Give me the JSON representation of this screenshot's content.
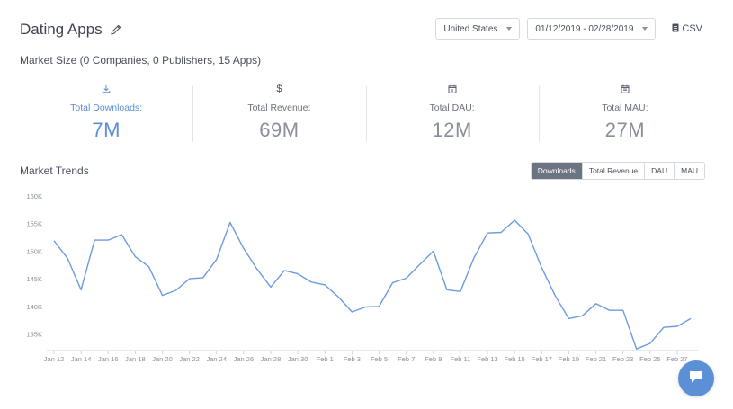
{
  "header": {
    "title": "Dating Apps",
    "edit_icon": "pencil-icon"
  },
  "filters": {
    "country": "United States",
    "date_range": "01/12/2019 - 02/28/2019",
    "export_label": "CSV",
    "export_icon": "document-icon"
  },
  "market_size": "Market Size (0 Companies, 0 Publishers, 15 Apps)",
  "metrics": [
    {
      "icon": "download-icon",
      "label": "Total Downloads:",
      "value": "7M",
      "active": true
    },
    {
      "icon": "dollar-icon",
      "label": "Total Revenue:",
      "value": "69M",
      "active": false
    },
    {
      "icon": "calendar-day-icon",
      "label": "Total DAU:",
      "value": "12M",
      "active": false
    },
    {
      "icon": "calendar-month-icon",
      "label": "Total MAU:",
      "value": "27M",
      "active": false
    }
  ],
  "trends": {
    "title": "Market Trends",
    "tabs": [
      "Downloads",
      "Total Revenue",
      "DAU",
      "MAU"
    ],
    "active_tab": "Downloads"
  },
  "colors": {
    "accent": "#5b8fd6",
    "active_tab_bg": "#6c7483"
  },
  "chart_data": {
    "type": "line",
    "title": "",
    "xlabel": "",
    "ylabel": "",
    "ylim": [
      132000,
      160000
    ],
    "y_ticks": [
      "160K",
      "155K",
      "150K",
      "145K",
      "140K",
      "135K"
    ],
    "y_tick_values": [
      160000,
      155000,
      150000,
      145000,
      140000,
      135000
    ],
    "x_tick_labels": [
      "Jan 12",
      "Jan 14",
      "Jan 16",
      "Jan 18",
      "Jan 20",
      "Jan 22",
      "Jan 24",
      "Jan 26",
      "Jan 28",
      "Jan 30",
      "Feb 1",
      "Feb 3",
      "Feb 5",
      "Feb 7",
      "Feb 9",
      "Feb 11",
      "Feb 13",
      "Feb 15",
      "Feb 17",
      "Feb 19",
      "Feb 21",
      "Feb 23",
      "Feb 25",
      "Feb 27"
    ],
    "x": [
      "Jan 12",
      "Jan 13",
      "Jan 14",
      "Jan 15",
      "Jan 16",
      "Jan 17",
      "Jan 18",
      "Jan 19",
      "Jan 20",
      "Jan 21",
      "Jan 22",
      "Jan 23",
      "Jan 24",
      "Jan 25",
      "Jan 26",
      "Jan 27",
      "Jan 28",
      "Jan 29",
      "Jan 30",
      "Jan 31",
      "Feb 1",
      "Feb 2",
      "Feb 3",
      "Feb 4",
      "Feb 5",
      "Feb 6",
      "Feb 7",
      "Feb 8",
      "Feb 9",
      "Feb 10",
      "Feb 11",
      "Feb 12",
      "Feb 13",
      "Feb 14",
      "Feb 15",
      "Feb 16",
      "Feb 17",
      "Feb 18",
      "Feb 19",
      "Feb 20",
      "Feb 21",
      "Feb 22",
      "Feb 23",
      "Feb 24",
      "Feb 25",
      "Feb 26",
      "Feb 27",
      "Feb 28"
    ],
    "series": [
      {
        "color": "#6b9be0",
        "values": [
          151900,
          148700,
          143000,
          152000,
          152000,
          153000,
          149000,
          147200,
          142000,
          142900,
          145000,
          145200,
          148500,
          155200,
          150500,
          146700,
          143500,
          146500,
          145900,
          144400,
          143900,
          141700,
          139000,
          139900,
          140000,
          144300,
          145100,
          147600,
          150000,
          143000,
          142700,
          148800,
          153300,
          153400,
          155600,
          153100,
          147000,
          141900,
          137800,
          138300,
          140500,
          139300,
          139300,
          132300,
          133300,
          136200,
          136400,
          137800
        ]
      }
    ],
    "grid": false,
    "legend": "none"
  },
  "chat": {
    "icon": "chat-icon"
  }
}
